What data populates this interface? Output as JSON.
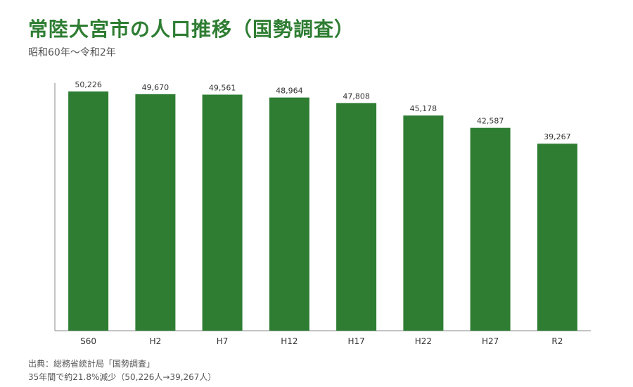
{
  "chart_data": {
    "type": "bar",
    "title": "常陸大宮市の人口推移（国勢調査）",
    "subtitle": "昭和60年〜令和2年",
    "categories": [
      "S60",
      "H2",
      "H7",
      "H12",
      "H17",
      "H22",
      "H27",
      "R2"
    ],
    "values": [
      50226,
      49670,
      49561,
      48964,
      47808,
      45178,
      42587,
      39267
    ],
    "value_labels": [
      "50,226",
      "49,670",
      "49,561",
      "48,964",
      "47,808",
      "45,178",
      "42,587",
      "39,267"
    ],
    "xlabel": "",
    "ylabel": "",
    "ylim": [
      0,
      52000
    ],
    "grid": false,
    "bar_color": "#2e7d32"
  },
  "notes": {
    "source": "出典：総務省統計局「国勢調査」",
    "summary": "35年間で約21.8%減少（50,226人→39,267人）"
  },
  "colors": {
    "title": "#2e7d32",
    "axis": "#888888",
    "text": "#333333"
  }
}
